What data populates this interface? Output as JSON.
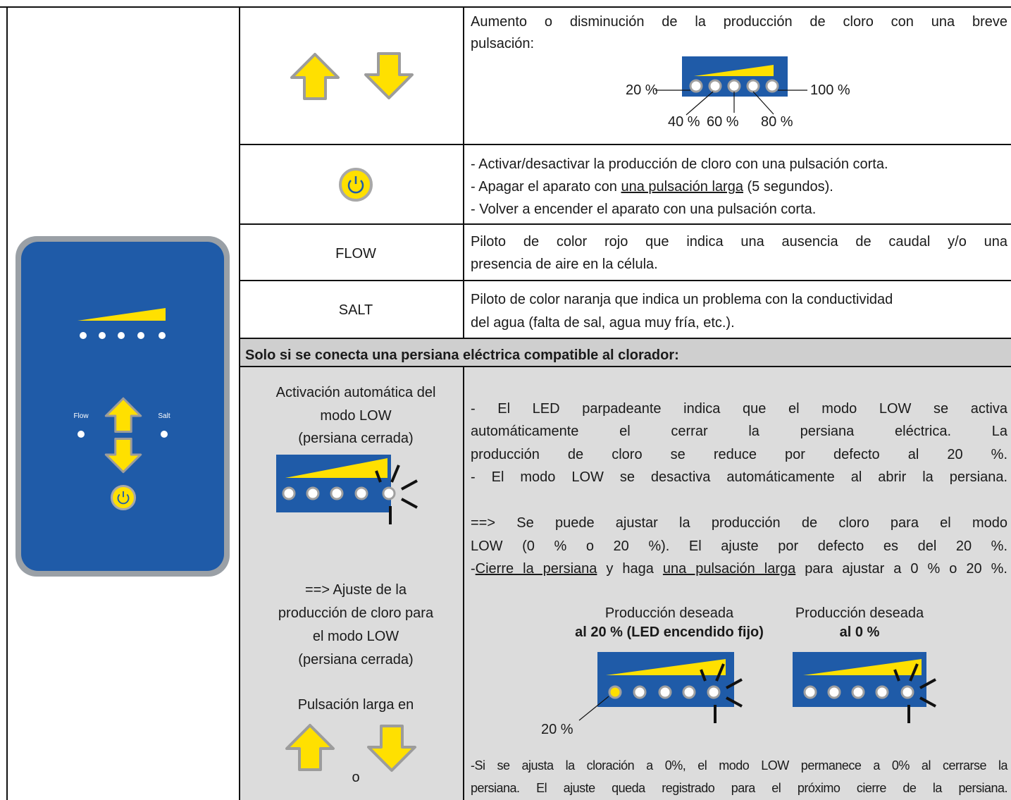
{
  "table": {
    "rows": [
      {
        "description_lines": [
          "Aumento o disminución de la producción de cloro con una breve",
          "pulsación:"
        ],
        "scale_labels": [
          "20 %",
          "40 %",
          "60 %",
          "80 %",
          "100 %"
        ]
      },
      {
        "description_lines": [
          "- Activar/desactivar la producción de cloro con una pulsación corta.",
          [
            "- Apagar el aparato con ",
            "una pulsación larga",
            " (5 segundos)."
          ],
          "- Volver a encender el aparato con una pulsación corta."
        ]
      },
      {
        "label": "FLOW",
        "description_lines": [
          "Piloto de color rojo que indica una ausencia de caudal y/o una",
          "presencia de aire en la célula."
        ]
      },
      {
        "label": "SALT",
        "description_lines": [
          "Piloto de color naranja que indica un problema con la conductividad",
          "del agua (falta de sal, agua muy fría, etc.)."
        ]
      }
    ],
    "section_header": "Solo si se conecta una persiana eléctrica compatible al clorador:",
    "low_mode": {
      "activation_lines": [
        "Activación automática del",
        "modo LOW",
        "(persiana cerrada)"
      ],
      "adjust_lines": [
        "==> Ajuste de la",
        "producción de cloro para",
        "el modo LOW",
        "(persiana cerrada)"
      ],
      "long_press": "Pulsación larga en",
      "or": "o",
      "paragraph_1": [
        "- El LED parpadeante indica que el modo LOW se activa",
        "automáticamente el cerrar la persiana eléctrica. La",
        "producción de cloro se reduce por defecto al 20 %.",
        "- El modo LOW se desactiva automáticamente al abrir la persiana."
      ],
      "paragraph_2": [
        "==> Se puede ajustar la producción de cloro para el modo",
        "LOW (0 % o 20 %). El ajuste por defecto es del 20 %.",
        [
          "-",
          "Cierre la persiana",
          " y haga ",
          "una pulsación larga",
          " para ajustar a 0 % o 20 %."
        ]
      ],
      "options": [
        {
          "caption": "Producción deseada",
          "setting": "al 20 % (LED encendido fijo)"
        },
        {
          "caption": "Producción deseada",
          "setting": "al 0 %"
        }
      ],
      "led_label": "20 %",
      "note_lines": [
        "-Si se ajusta la cloración a 0%, el modo LOW permanece a 0% al cerrarse la",
        "persiana. El ajuste queda registrado para el próximo cierre de la persiana."
      ]
    }
  },
  "device": {
    "flow_label": "Flow",
    "salt_label": "Salt"
  }
}
